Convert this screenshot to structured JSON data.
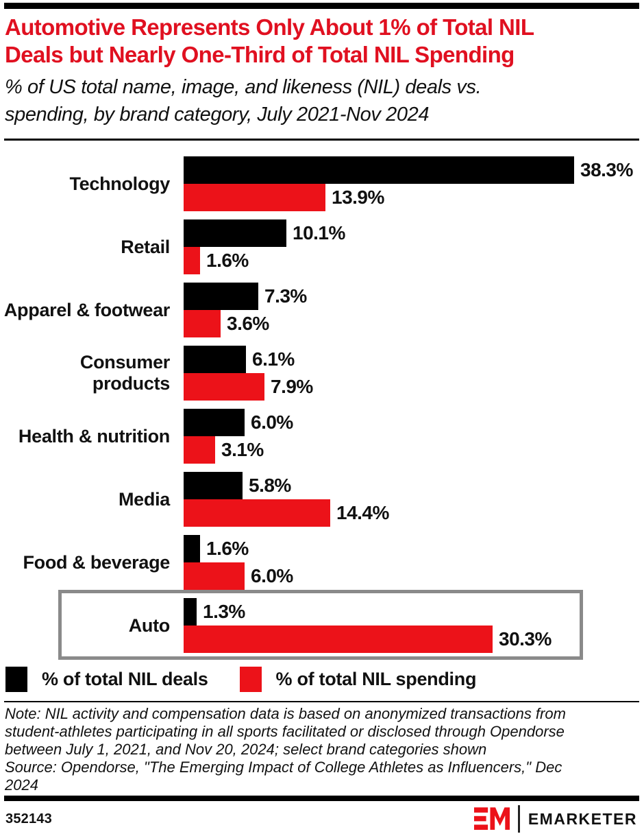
{
  "title_lines": [
    "Automotive Represents Only About 1% of Total NIL",
    "Deals but Nearly One-Third of Total NIL Spending"
  ],
  "title_text": "Automotive Represents Only About 1% of Total NIL Deals but Nearly One-Third of Total NIL Spending",
  "subtitle_lines": [
    "% of US total name, image, and likeness (NIL) deals vs.",
    "spending, by brand category, July 2021-Nov 2024"
  ],
  "chart_data": {
    "type": "bar",
    "orientation": "horizontal",
    "categories": [
      "Technology",
      "Retail",
      "Apparel & footwear",
      "Consumer products",
      "Health & nutrition",
      "Media",
      "Food & beverage",
      "Auto"
    ],
    "series": [
      {
        "name": "% of total NIL deals",
        "color": "#000000",
        "values": [
          38.3,
          10.1,
          7.3,
          6.1,
          6.0,
          5.8,
          1.6,
          1.3
        ]
      },
      {
        "name": "% of total NIL spending",
        "color": "#EC1219",
        "values": [
          13.9,
          1.6,
          3.6,
          7.9,
          3.1,
          14.4,
          6.0,
          30.3
        ]
      }
    ],
    "value_suffix": "%",
    "xlim": [
      0,
      40
    ],
    "grid": false,
    "legend_position": "bottom-left",
    "highlighted_category": "Auto"
  },
  "legend": {
    "items": [
      {
        "label": "% of total NIL deals",
        "color": "#000000"
      },
      {
        "label": "% of total NIL spending",
        "color": "#EC1219"
      }
    ]
  },
  "note_lines": [
    "Note: NIL activity and compensation data is based on anonymized transactions from",
    "student-athletes participating in all sports facilitated or disclosed through Opendorse",
    "between July 1, 2021, and Nov 20, 2024; select brand categories shown"
  ],
  "source_lines": [
    "Source: Opendorse, \"The Emerging Impact of College Athletes as Influencers,\" Dec",
    "2024"
  ],
  "footer": {
    "chart_id": "352143",
    "brand_name": "EMARKETER",
    "logo_monogram": "EM"
  },
  "colors": {
    "title_red": "#E01020",
    "bar_red": "#EC1219",
    "bar_black": "#000000",
    "highlight_border": "#8A8A8A",
    "accent_bar": "#000000"
  }
}
